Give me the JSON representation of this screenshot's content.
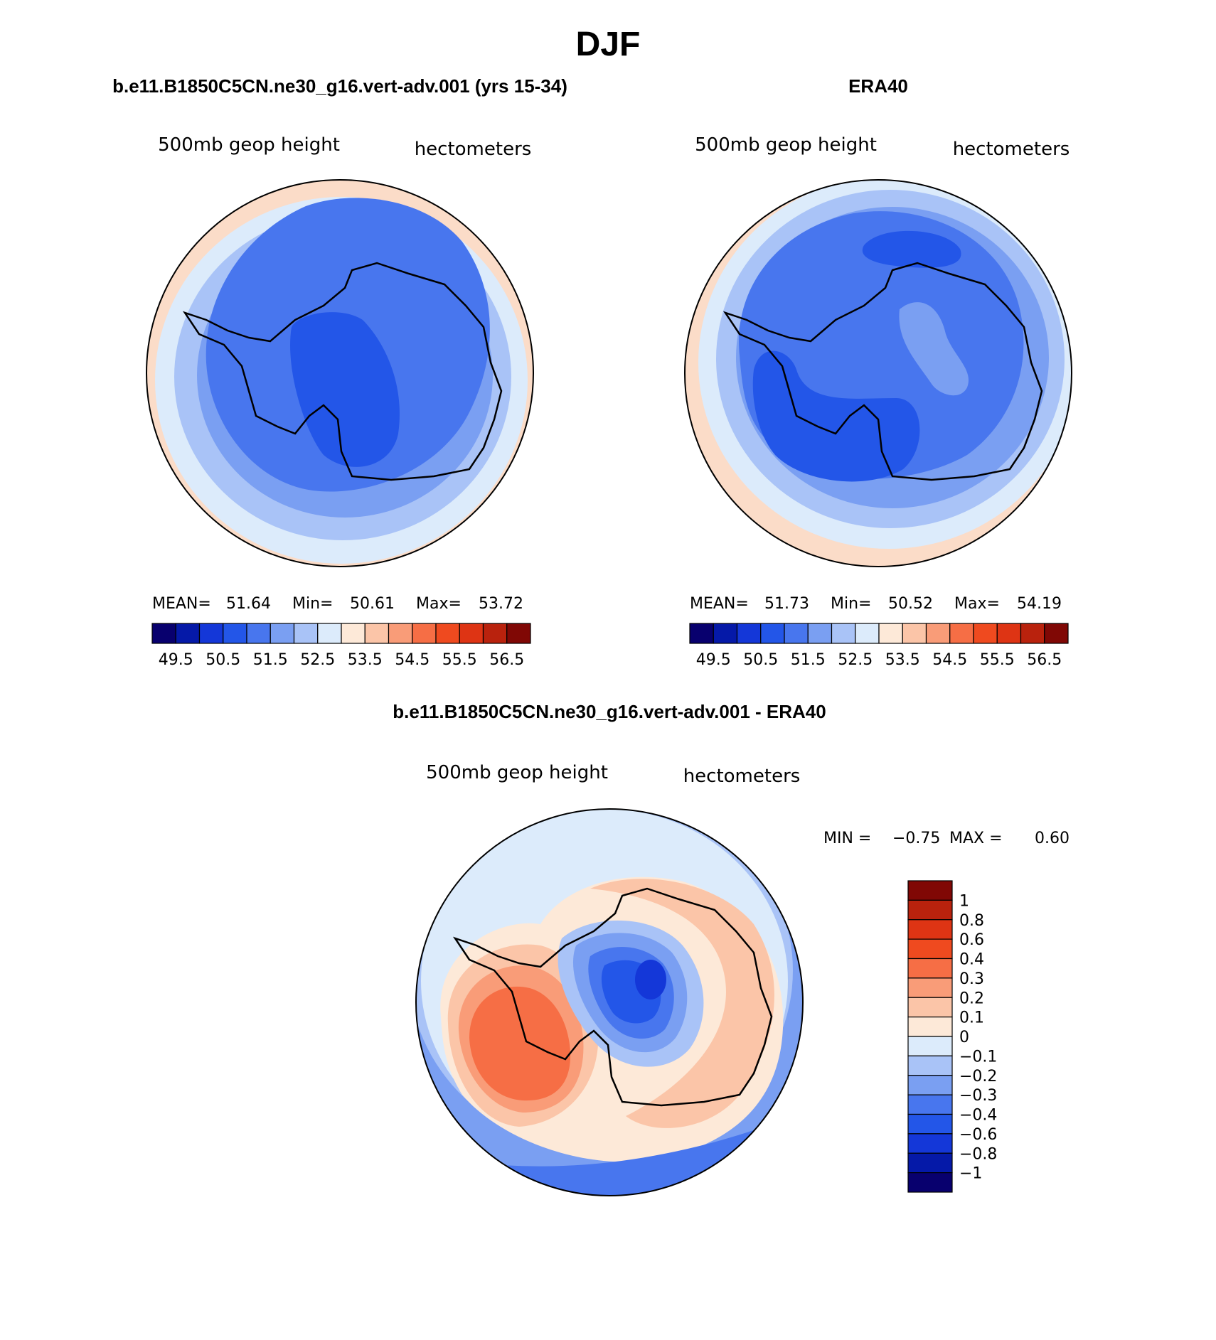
{
  "page": {
    "title": "DJF"
  },
  "chart_data": [
    {
      "id": "model",
      "type": "contour",
      "projection": "south-polar-stereographic",
      "title": "b.e11.B1850C5CN.ne30_g16.vert-adv.001 (yrs 15-34)",
      "left_label": "500mb geop height",
      "right_label": "hectometers",
      "stats": {
        "mean_label": "MEAN=",
        "mean": "51.64",
        "min_label": "Min=",
        "min": "50.61",
        "max_label": "Max=",
        "max": "53.72"
      },
      "colorbar": {
        "orientation": "horizontal",
        "tick_labels": [
          "49.5",
          "50.5",
          "51.5",
          "52.5",
          "53.5",
          "54.5",
          "55.5",
          "56.5"
        ],
        "colors": [
          "#08006e",
          "#0519a8",
          "#1437d8",
          "#2356e8",
          "#4876ee",
          "#7a9ff2",
          "#a9c3f7",
          "#dcebfb",
          "#fde9d8",
          "#fbc5a8",
          "#f99c78",
          "#f66e45",
          "#ef4a1f",
          "#de3414",
          "#b9220d",
          "#800805"
        ]
      },
      "contours": [
        {
          "level": "53.5",
          "color": "#fde9d8"
        },
        {
          "level": "53.0",
          "color": "#dcebfb"
        },
        {
          "level": "52.5",
          "color": "#a9c3f7"
        },
        {
          "level": "52.0",
          "color": "#7a9ff2"
        },
        {
          "level": "51.5",
          "color": "#4876ee"
        },
        {
          "level": "51.0",
          "color": "#2356e8"
        }
      ]
    },
    {
      "id": "obs",
      "type": "contour",
      "projection": "south-polar-stereographic",
      "title": "ERA40",
      "left_label": "500mb geop height",
      "right_label": "hectometers",
      "stats": {
        "mean_label": "MEAN=",
        "mean": "51.73",
        "min_label": "Min=",
        "min": "50.52",
        "max_label": "Max=",
        "max": "54.19"
      },
      "colorbar": {
        "orientation": "horizontal",
        "tick_labels": [
          "49.5",
          "50.5",
          "51.5",
          "52.5",
          "53.5",
          "54.5",
          "55.5",
          "56.5"
        ],
        "colors": [
          "#08006e",
          "#0519a8",
          "#1437d8",
          "#2356e8",
          "#4876ee",
          "#7a9ff2",
          "#a9c3f7",
          "#dcebfb",
          "#fde9d8",
          "#fbc5a8",
          "#f99c78",
          "#f66e45",
          "#ef4a1f",
          "#de3414",
          "#b9220d",
          "#800805"
        ]
      }
    },
    {
      "id": "diff",
      "type": "contour",
      "projection": "south-polar-stereographic",
      "title": "b.e11.B1850C5CN.ne30_g16.vert-adv.001 - ERA40",
      "left_label": "500mb geop height",
      "right_label": "hectometers",
      "stats": {
        "min_label": "MIN =",
        "min": "−0.75",
        "max_label": "MAX =",
        "max": "0.60"
      },
      "colorbar": {
        "orientation": "vertical",
        "tick_labels": [
          "1",
          "0.8",
          "0.6",
          "0.4",
          "0.3",
          "0.2",
          "0.1",
          "0",
          "−0.1",
          "−0.2",
          "−0.3",
          "−0.4",
          "−0.6",
          "−0.8",
          "−1"
        ],
        "colors": [
          "#800805",
          "#b9220d",
          "#de3414",
          "#ef4a1f",
          "#f66e45",
          "#f99c78",
          "#fbc5a8",
          "#fde9d8",
          "#dcebfb",
          "#a9c3f7",
          "#7a9ff2",
          "#4876ee",
          "#2356e8",
          "#1437d8",
          "#0519a8",
          "#08006e"
        ]
      }
    }
  ]
}
